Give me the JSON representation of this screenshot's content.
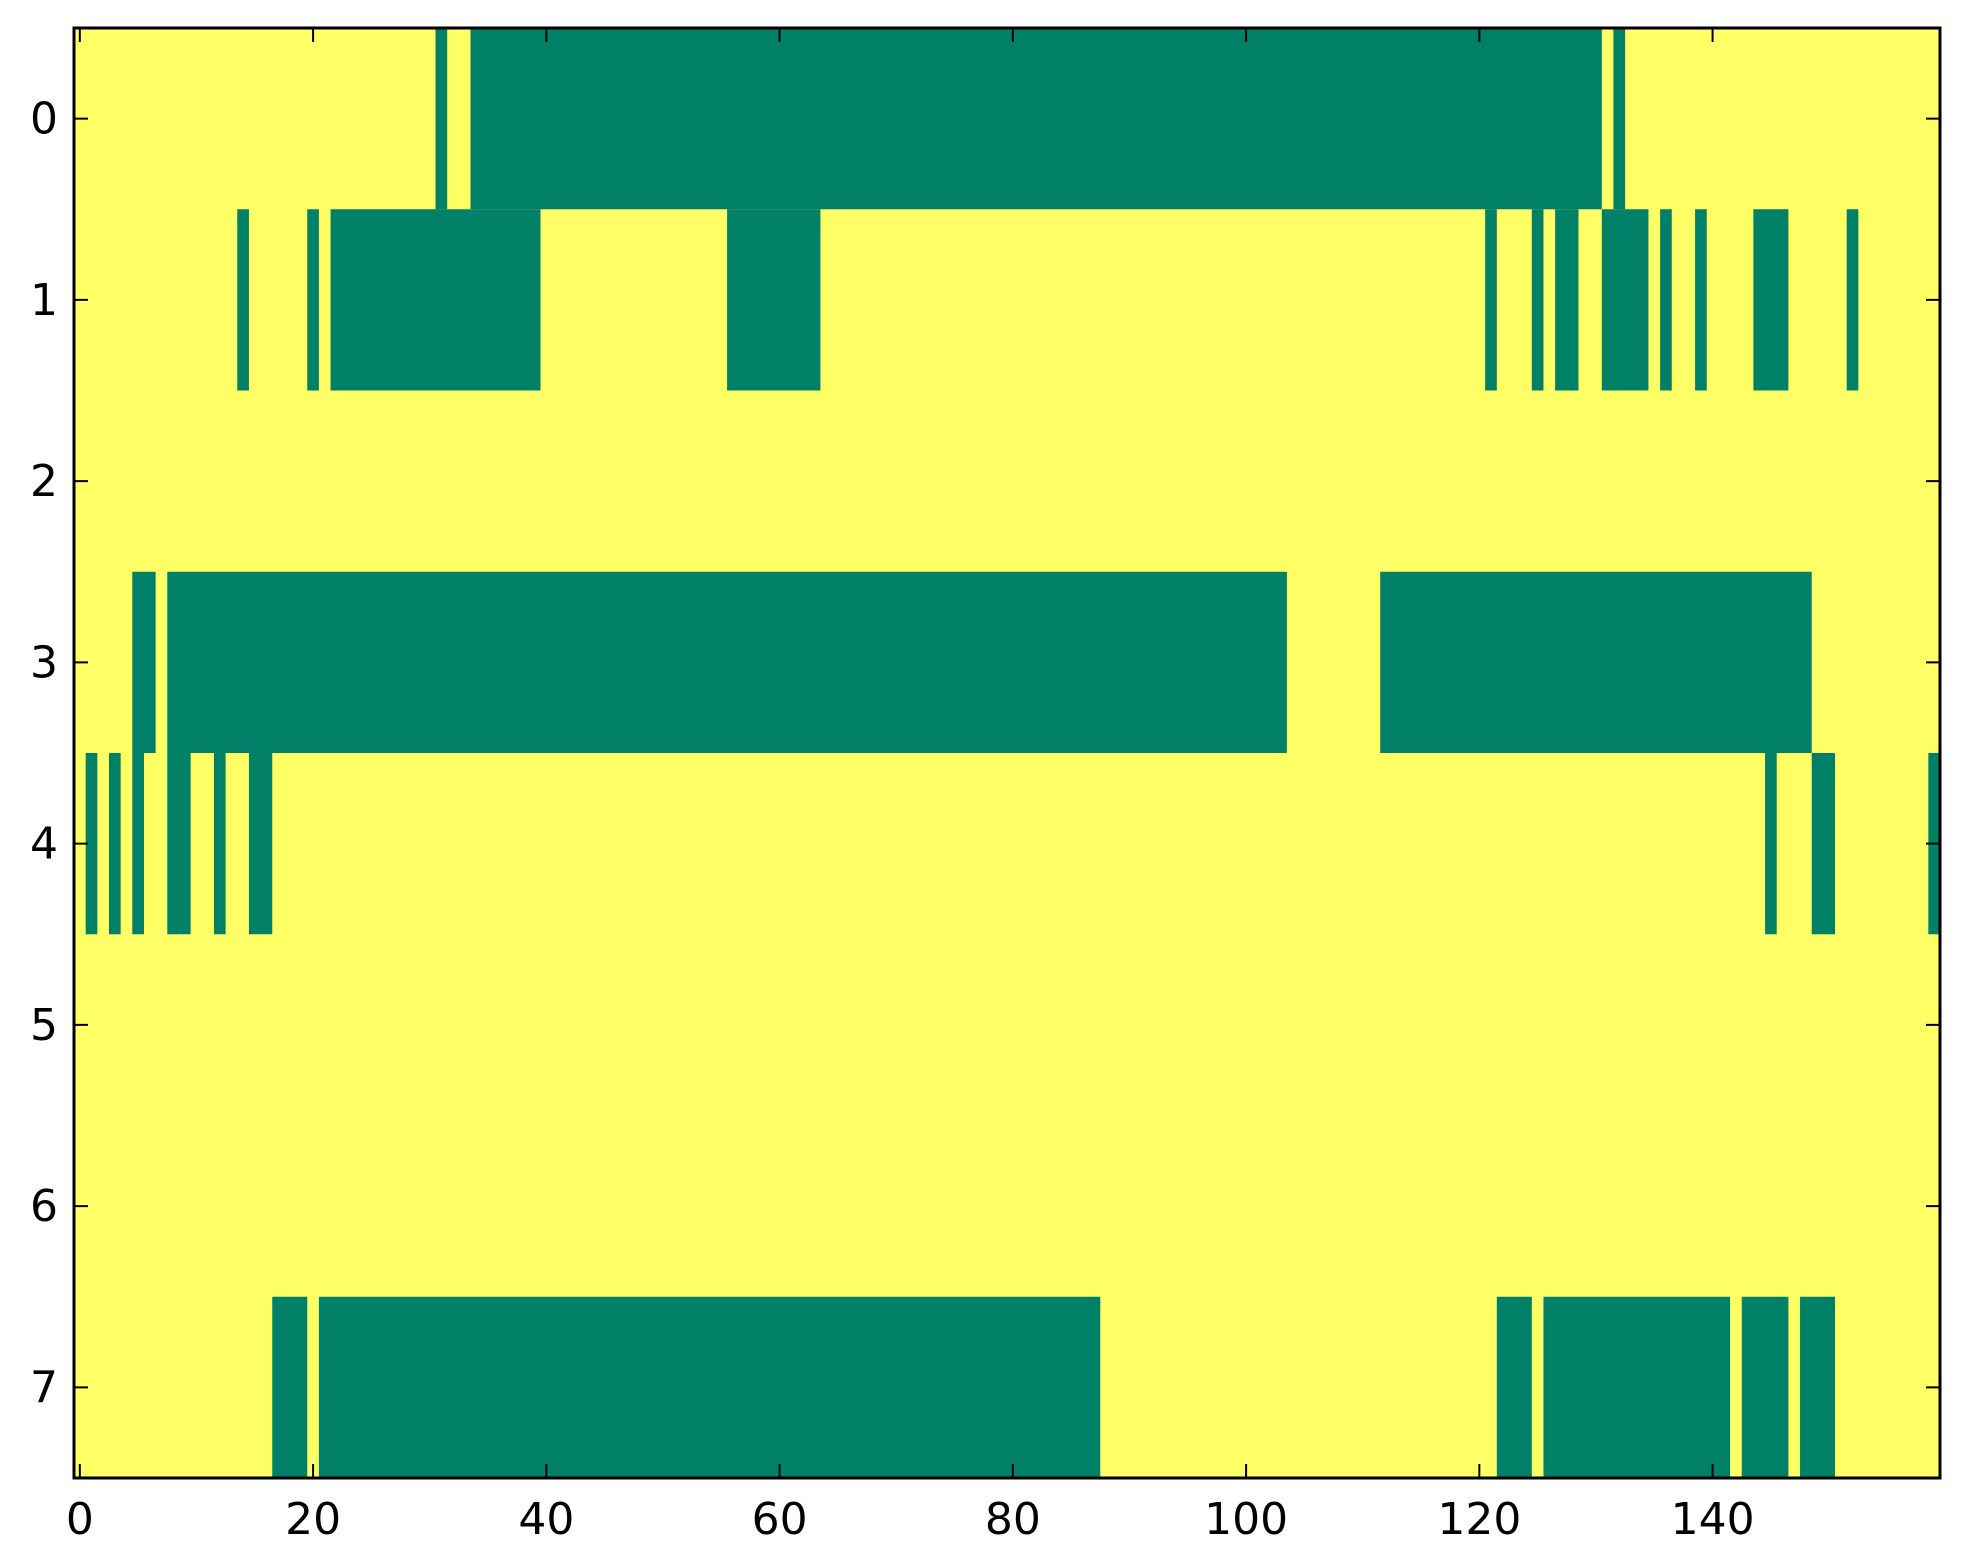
{
  "chart_data": {
    "type": "heatmap",
    "title": "",
    "xlabel": "",
    "ylabel": "",
    "xlim": [
      -0.5,
      159.5
    ],
    "ylim": [
      7.5,
      -0.5
    ],
    "x_ticks": [
      0,
      20,
      40,
      60,
      80,
      100,
      120,
      140
    ],
    "y_ticks": [
      0,
      1,
      2,
      3,
      4,
      5,
      6,
      7
    ],
    "grid": false,
    "legend": "none",
    "colors": {
      "off": "#ffff66",
      "on": "#008066",
      "axis": "#000000"
    },
    "value_encoding": "cells listed in 'rows' have value 1 (green); all other cells have value 0 (yellow)",
    "rows": [
      {
        "row": 0,
        "on_runs": [
          [
            31,
            31
          ],
          [
            34,
            130
          ],
          [
            132,
            132
          ]
        ]
      },
      {
        "row": 1,
        "on_runs": [
          [
            14,
            14
          ],
          [
            20,
            20
          ],
          [
            22,
            39
          ],
          [
            56,
            63
          ],
          [
            121,
            121
          ],
          [
            125,
            125
          ],
          [
            127,
            128
          ],
          [
            131,
            134
          ],
          [
            136,
            136
          ],
          [
            139,
            139
          ],
          [
            144,
            146
          ],
          [
            152,
            152
          ]
        ]
      },
      {
        "row": 2,
        "on_runs": []
      },
      {
        "row": 3,
        "on_runs": [
          [
            5,
            6
          ],
          [
            8,
            103
          ],
          [
            112,
            148
          ]
        ]
      },
      {
        "row": 4,
        "on_runs": [
          [
            1,
            1
          ],
          [
            3,
            3
          ],
          [
            5,
            5
          ],
          [
            8,
            9
          ],
          [
            12,
            12
          ],
          [
            15,
            16
          ],
          [
            145,
            145
          ],
          [
            149,
            150
          ],
          [
            159,
            159
          ]
        ]
      },
      {
        "row": 5,
        "on_runs": []
      },
      {
        "row": 6,
        "on_runs": []
      },
      {
        "row": 7,
        "on_runs": [
          [
            17,
            19
          ],
          [
            21,
            87
          ],
          [
            122,
            124
          ],
          [
            126,
            141
          ],
          [
            143,
            146
          ],
          [
            148,
            150
          ]
        ]
      }
    ]
  }
}
